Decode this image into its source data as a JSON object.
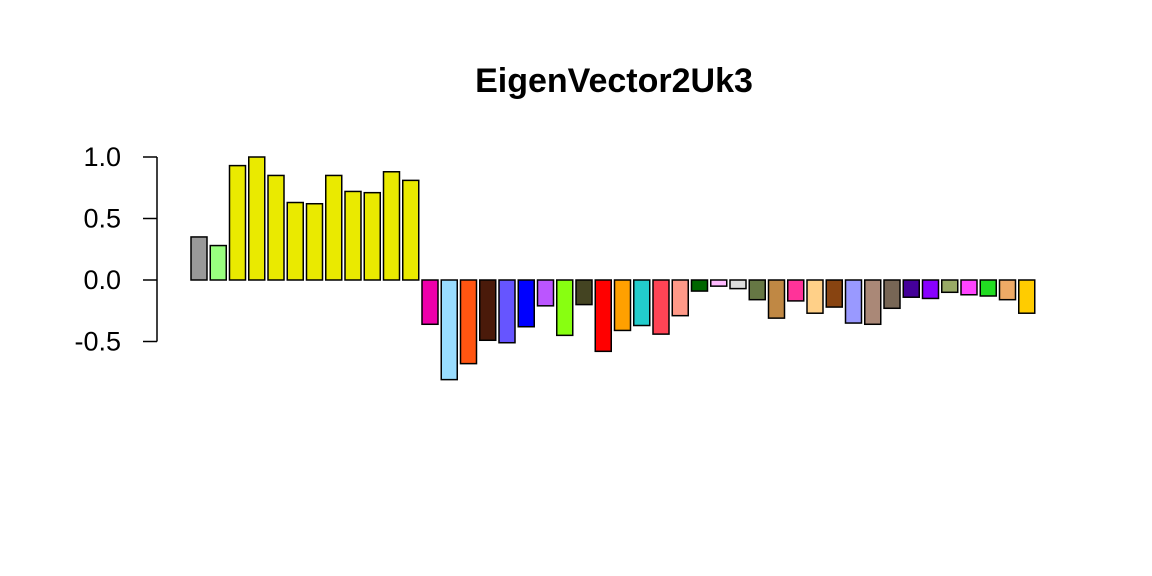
{
  "chart_data": {
    "type": "bar",
    "title": "EigenVector2Uk3",
    "xlabel": "",
    "ylabel": "",
    "ylim": [
      -0.8,
      1.0
    ],
    "yticks": [
      "1.0",
      "0.5",
      "0.0",
      "-0.5"
    ],
    "ytick_values": [
      1.0,
      0.5,
      0.0,
      -0.5
    ],
    "grid": false,
    "legend": "none",
    "values": [
      0.35,
      0.28,
      0.93,
      1.0,
      0.85,
      0.63,
      0.62,
      0.85,
      0.72,
      0.71,
      0.88,
      0.81,
      -0.36,
      -0.81,
      -0.68,
      -0.49,
      -0.51,
      -0.38,
      -0.21,
      -0.45,
      -0.2,
      -0.58,
      -0.41,
      -0.37,
      -0.44,
      -0.29,
      -0.09,
      -0.05,
      -0.07,
      -0.16,
      -0.31,
      -0.17,
      -0.27,
      -0.22,
      -0.35,
      -0.36,
      -0.23,
      -0.14,
      -0.15,
      -0.1,
      -0.12,
      -0.13,
      -0.16,
      -0.27
    ],
    "colors": [
      "#999999",
      "#99ff7f",
      "#eaea00",
      "#eaea00",
      "#eaea00",
      "#eaea00",
      "#eaea00",
      "#eaea00",
      "#eaea00",
      "#eaea00",
      "#eaea00",
      "#eaea00",
      "#ee00aa",
      "#99ddff",
      "#ff5511",
      "#4a1a0a",
      "#6655ff",
      "#0000ff",
      "#bb55ff",
      "#88ff11",
      "#444422",
      "#ff0000",
      "#ffa000",
      "#22cccc",
      "#ff4455",
      "#ff9988",
      "#006600",
      "#ffbbff",
      "#dddddd",
      "#667744",
      "#c08844",
      "#ff3399",
      "#ffd088",
      "#884411",
      "#9999ff",
      "#aa8877",
      "#776655",
      "#440099",
      "#8800ff",
      "#99aa66",
      "#ff44ff",
      "#22dd22",
      "#eeaa66",
      "#ffcc00"
    ]
  }
}
